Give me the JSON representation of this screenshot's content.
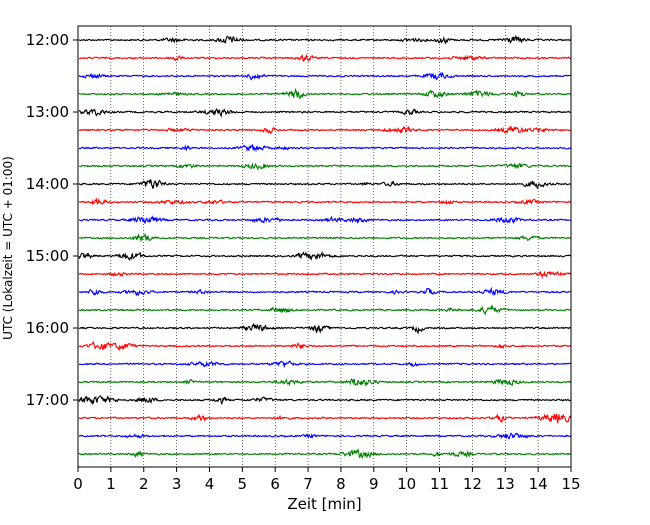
{
  "chart_data": {
    "type": "line",
    "description_kind": "helicorder",
    "xlabel": "Zeit  [min]",
    "ylabel": "UTC (Lokalzeit = UTC + 01:00)",
    "xlim": [
      0,
      15
    ],
    "x_ticks": [
      0,
      1,
      2,
      3,
      4,
      5,
      6,
      7,
      8,
      9,
      10,
      11,
      12,
      13,
      14,
      15
    ],
    "x_tick_labels": [
      "0",
      "1",
      "2",
      "3",
      "4",
      "5",
      "6",
      "7",
      "8",
      "9",
      "10",
      "11",
      "12",
      "13",
      "14",
      "15"
    ],
    "y_tick_labels": [
      "12:00",
      "13:00",
      "14:00",
      "15:00",
      "16:00",
      "17:00"
    ],
    "lines_per_hour": 4,
    "minutes_per_line": 15,
    "trace_start": "12:00",
    "trace_end": "17:45",
    "trace_colors": [
      "#000000",
      "#ff0000",
      "#0000ff",
      "#008000"
    ],
    "vertical_grid": "dotted",
    "trace_count": 24
  }
}
